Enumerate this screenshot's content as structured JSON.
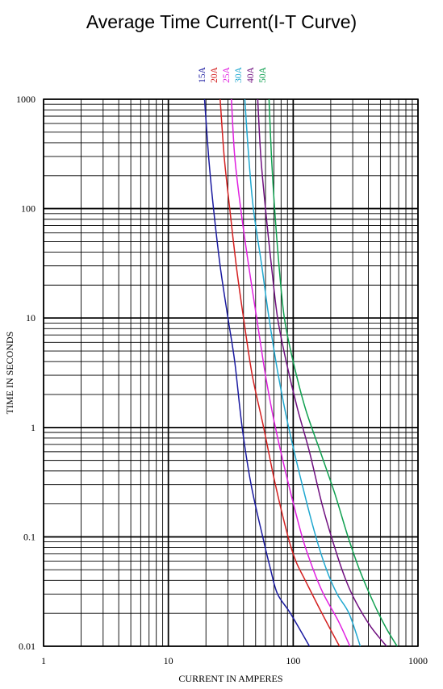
{
  "chart_data": {
    "type": "line",
    "title": "Average Time Current(I-T Curve)",
    "xlabel": "CURRENT IN AMPERES",
    "ylabel": "TIME IN SECONDS",
    "x_scale": "log",
    "y_scale": "log",
    "xlim": [
      1,
      1000
    ],
    "ylim": [
      0.01,
      1000
    ],
    "x_ticks": [
      "1",
      "10",
      "100",
      "1000"
    ],
    "y_ticks": [
      "1000",
      "100",
      "10",
      "1",
      "0.1",
      "0.01"
    ],
    "grid": true,
    "legend_position": "top",
    "series": [
      {
        "name": "15A",
        "color": "#1a1aa0",
        "points": [
          [
            19.5,
            1000
          ],
          [
            21,
            300
          ],
          [
            23,
            100
          ],
          [
            26,
            30
          ],
          [
            30,
            10
          ],
          [
            34,
            4
          ],
          [
            39,
            1
          ],
          [
            46,
            0.3
          ],
          [
            57,
            0.1
          ],
          [
            66,
            0.05
          ],
          [
            75,
            0.03
          ],
          [
            95,
            0.02
          ],
          [
            135,
            0.01
          ]
        ]
      },
      {
        "name": "20A",
        "color": "#d42020",
        "points": [
          [
            26,
            1000
          ],
          [
            28,
            300
          ],
          [
            31,
            100
          ],
          [
            35,
            30
          ],
          [
            40,
            10
          ],
          [
            47,
            3
          ],
          [
            58,
            1
          ],
          [
            72,
            0.3
          ],
          [
            91,
            0.1
          ],
          [
            105,
            0.06
          ],
          [
            125,
            0.04
          ],
          [
            170,
            0.02
          ],
          [
            235,
            0.01
          ]
        ]
      },
      {
        "name": "25A",
        "color": "#e020e0",
        "points": [
          [
            32,
            1000
          ],
          [
            34,
            300
          ],
          [
            38,
            100
          ],
          [
            44,
            30
          ],
          [
            51,
            10
          ],
          [
            60,
            3
          ],
          [
            72,
            1
          ],
          [
            92,
            0.3
          ],
          [
            118,
            0.1
          ],
          [
            145,
            0.05
          ],
          [
            175,
            0.03
          ],
          [
            230,
            0.017
          ],
          [
            285,
            0.01
          ]
        ]
      },
      {
        "name": "30A",
        "color": "#20a8d0",
        "points": [
          [
            41,
            1000
          ],
          [
            44,
            300
          ],
          [
            48,
            100
          ],
          [
            56,
            30
          ],
          [
            64,
            10
          ],
          [
            76,
            3
          ],
          [
            92,
            1
          ],
          [
            118,
            0.3
          ],
          [
            152,
            0.1
          ],
          [
            185,
            0.05
          ],
          [
            225,
            0.03
          ],
          [
            280,
            0.02
          ],
          [
            345,
            0.01
          ]
        ]
      },
      {
        "name": "40A",
        "color": "#701080",
        "points": [
          [
            52,
            1000
          ],
          [
            55,
            300
          ],
          [
            60,
            100
          ],
          [
            67,
            30
          ],
          [
            75,
            10
          ],
          [
            88,
            4
          ],
          [
            108,
            1.5
          ],
          [
            135,
            0.6
          ],
          [
            170,
            0.2
          ],
          [
            215,
            0.08
          ],
          [
            265,
            0.04
          ],
          [
            320,
            0.025
          ],
          [
            420,
            0.015
          ],
          [
            560,
            0.01
          ]
        ]
      },
      {
        "name": "50A",
        "color": "#10a050",
        "points": [
          [
            64,
            1000
          ],
          [
            67,
            300
          ],
          [
            71,
            100
          ],
          [
            77,
            30
          ],
          [
            85,
            10
          ],
          [
            100,
            4
          ],
          [
            125,
            1.5
          ],
          [
            165,
            0.6
          ],
          [
            215,
            0.25
          ],
          [
            275,
            0.1
          ],
          [
            340,
            0.05
          ],
          [
            440,
            0.025
          ],
          [
            550,
            0.015
          ],
          [
            680,
            0.01
          ]
        ]
      }
    ]
  }
}
